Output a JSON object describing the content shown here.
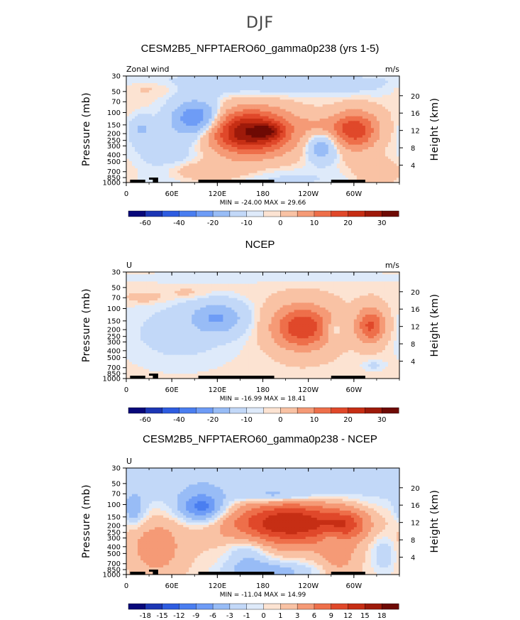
{
  "figure": {
    "title": "DJF"
  },
  "colors": {
    "blue": [
      "#08087a",
      "#1c36b4",
      "#2e5ce0",
      "#4a7ef0",
      "#6e9cf6",
      "#98bcf6",
      "#c2d8f8",
      "#deeafa"
    ],
    "red": [
      "#fce3d2",
      "#f9c2a4",
      "#f59a76",
      "#ee6f4a",
      "#e0482a",
      "#c62e14",
      "#9e1a0a",
      "#6e0a04"
    ],
    "land": "#000000"
  },
  "chart_data": [
    {
      "type": "heatmap",
      "title": "CESM2B5_NFPTAERO60_gamma0p238 (yrs 1-5)",
      "label_left": "Zonal wind",
      "label_right": "m/s",
      "ylabel": "Pressure (mb)",
      "ylabel_right": "Height (km)",
      "x_ticks": [
        "0",
        "60E",
        "120E",
        "180",
        "120W",
        "60W"
      ],
      "p_ticks": [
        "30",
        "50",
        "70",
        "100",
        "150",
        "200",
        "250",
        "300",
        "400",
        "500",
        "700",
        "850",
        "1000"
      ],
      "z_ticks": [
        "20",
        "16",
        "12",
        "8",
        "4"
      ],
      "min_max_text": "MIN = -24.00  MAX = 29.66",
      "min": -24.0,
      "max": 29.66,
      "colorbar_labels": [
        "-60",
        "-40",
        "-20",
        "-10",
        "0",
        "10",
        "20",
        "30"
      ],
      "blobs": [
        {
          "lon": 163,
          "p": 190,
          "dlon": 36,
          "dlogp": 0.21,
          "amp": 30
        },
        {
          "lon": 188,
          "p": 185,
          "dlon": 12,
          "dlogp": 0.07,
          "amp": 10
        },
        {
          "lon": 302,
          "p": 180,
          "dlon": 20,
          "dlogp": 0.18,
          "amp": 18
        },
        {
          "lon": 262,
          "p": 150,
          "dlon": 26,
          "dlogp": 0.1,
          "amp": 4
        },
        {
          "lon": 258,
          "p": 320,
          "dlon": 14,
          "dlogp": 0.14,
          "amp": -9
        },
        {
          "lon": 93,
          "p": 120,
          "dlon": 22,
          "dlogp": 0.17,
          "amp": -16
        },
        {
          "lon": 20,
          "p": 170,
          "dlon": 10,
          "dlogp": 0.12,
          "amp": -5
        },
        {
          "lon": 60,
          "p": 330,
          "dlon": 40,
          "dlogp": 0.3,
          "amp": -3
        },
        {
          "lon": 180,
          "p": 40,
          "dlon": 200,
          "dlogp": 0.12,
          "amp": -3
        },
        {
          "lon": 30,
          "p": 45,
          "dlon": 30,
          "dlogp": 0.08,
          "amp": 2.5
        },
        {
          "lon": 110,
          "p": 700,
          "dlon": 35,
          "dlogp": 0.1,
          "amp": 5
        },
        {
          "lon": 330,
          "p": 700,
          "dlon": 20,
          "dlogp": 0.12,
          "amp": 4
        },
        {
          "lon": 190,
          "p": 900,
          "dlon": 90,
          "dlogp": 0.12,
          "amp": -2
        }
      ]
    },
    {
      "type": "heatmap",
      "title": "NCEP",
      "label_left": "U",
      "label_right": "m/s",
      "ylabel": "Pressure (mb)",
      "ylabel_right": "Height (km)",
      "x_ticks": [
        "0",
        "60E",
        "120E",
        "180",
        "120W",
        "60W"
      ],
      "p_ticks": [
        "30",
        "50",
        "70",
        "100",
        "150",
        "200",
        "250",
        "300",
        "400",
        "500",
        "700",
        "850",
        "1000"
      ],
      "z_ticks": [
        "20",
        "16",
        "12",
        "8",
        "4"
      ],
      "min_max_text": "MIN = -16.99  MAX = 18.41",
      "min": -16.99,
      "max": 18.41,
      "colorbar_labels": [
        "-60",
        "-40",
        "-20",
        "-10",
        "0",
        "10",
        "20",
        "30"
      ],
      "blobs": [
        {
          "lon": 232,
          "p": 185,
          "dlon": 26,
          "dlogp": 0.21,
          "amp": 19
        },
        {
          "lon": 322,
          "p": 175,
          "dlon": 13,
          "dlogp": 0.17,
          "amp": 16
        },
        {
          "lon": 272,
          "p": 200,
          "dlon": 9,
          "dlogp": 0.08,
          "amp": -5
        },
        {
          "lon": 120,
          "p": 135,
          "dlon": 24,
          "dlogp": 0.15,
          "amp": -10
        },
        {
          "lon": 70,
          "p": 220,
          "dlon": 55,
          "dlogp": 0.35,
          "amp": -2.5
        },
        {
          "lon": 25,
          "p": 70,
          "dlon": 18,
          "dlogp": 0.06,
          "amp": 2
        },
        {
          "lon": 80,
          "p": 60,
          "dlon": 20,
          "dlogp": 0.06,
          "amp": 1.5
        },
        {
          "lon": 200,
          "p": 35,
          "dlon": 160,
          "dlogp": 0.08,
          "amp": -1
        },
        {
          "lon": 325,
          "p": 650,
          "dlon": 10,
          "dlogp": 0.05,
          "amp": -2
        }
      ]
    },
    {
      "type": "heatmap",
      "title": "CESM2B5_NFPTAERO60_gamma0p238 - NCEP",
      "label_left": "U",
      "label_right": "",
      "ylabel": "Pressure (mb)",
      "ylabel_right": "Height (km)",
      "x_ticks": [
        "0",
        "60E",
        "120E",
        "180",
        "120W",
        "60W"
      ],
      "p_ticks": [
        "30",
        "50",
        "70",
        "100",
        "150",
        "200",
        "250",
        "300",
        "400",
        "500",
        "700",
        "850",
        "1000"
      ],
      "z_ticks": [
        "20",
        "16",
        "12",
        "8",
        "4"
      ],
      "min_max_text": "MIN = -11.04  MAX = 14.99",
      "min": -11.04,
      "max": 14.99,
      "colorbar_labels": [
        "-18",
        "-15",
        "-12",
        "-9",
        "-6",
        "-3",
        "-1",
        "0",
        "1",
        "3",
        "6",
        "9",
        "12",
        "15",
        "18"
      ],
      "blobs": [
        {
          "lon": 215,
          "p": 180,
          "dlon": 55,
          "dlogp": 0.22,
          "amp": 15
        },
        {
          "lon": 290,
          "p": 190,
          "dlon": 18,
          "dlogp": 0.14,
          "amp": 6
        },
        {
          "lon": 200,
          "p": 75,
          "dlon": 35,
          "dlogp": 0.06,
          "amp": -4
        },
        {
          "lon": 100,
          "p": 110,
          "dlon": 20,
          "dlogp": 0.14,
          "amp": -10
        },
        {
          "lon": 160,
          "p": 500,
          "dlon": 20,
          "dlogp": 0.18,
          "amp": -4
        },
        {
          "lon": 190,
          "p": 900,
          "dlon": 40,
          "dlogp": 0.1,
          "amp": -5
        },
        {
          "lon": 180,
          "p": 40,
          "dlon": 250,
          "dlogp": 0.35,
          "amp": -3.5
        },
        {
          "lon": 40,
          "p": 400,
          "dlon": 25,
          "dlogp": 0.3,
          "amp": 4
        },
        {
          "lon": 280,
          "p": 600,
          "dlon": 18,
          "dlogp": 0.2,
          "amp": 3
        },
        {
          "lon": 270,
          "p": 280,
          "dlon": 10,
          "dlogp": 0.08,
          "amp": -3
        },
        {
          "lon": 340,
          "p": 500,
          "dlon": 12,
          "dlogp": 0.2,
          "amp": -3
        },
        {
          "lon": 10,
          "p": 120,
          "dlon": 10,
          "dlogp": 0.15,
          "amp": -5
        }
      ]
    }
  ]
}
